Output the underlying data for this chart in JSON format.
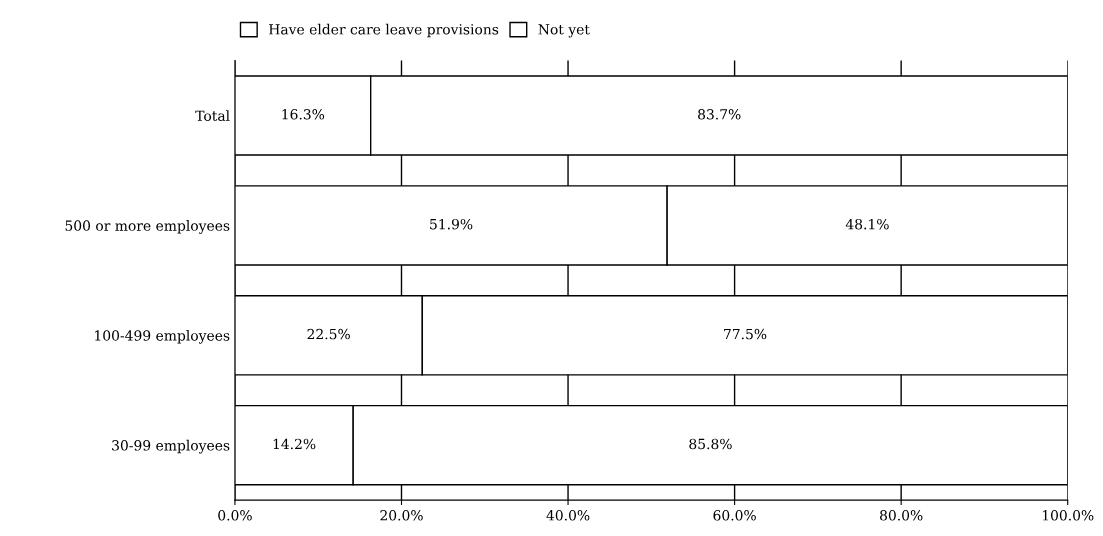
{
  "chart_data": {
    "type": "bar",
    "orientation": "horizontal",
    "stacked": true,
    "categories": [
      "Total",
      "500 or more employees",
      "100-499 employees",
      "30-99 employees"
    ],
    "series": [
      {
        "name": "Have elder care leave provisions",
        "color": "#ffffff",
        "values": [
          16.3,
          51.9,
          22.5,
          14.2
        ],
        "value_labels": [
          "16.3%",
          "51.9%",
          "22.5%",
          "14.2%"
        ]
      },
      {
        "name": "Not yet",
        "color": "#ffffff",
        "values": [
          83.7,
          48.1,
          77.5,
          85.8
        ],
        "value_labels": [
          "83.7%",
          "48.1%",
          "77.5%",
          "85.8%"
        ]
      }
    ],
    "xlim": [
      0,
      100
    ],
    "xticks": [
      {
        "value": 0,
        "label": "0.0%"
      },
      {
        "value": 20,
        "label": "20.0%"
      },
      {
        "value": 40,
        "label": "40.0%"
      },
      {
        "value": 60,
        "label": "60.0%"
      },
      {
        "value": 80,
        "label": "80.0%"
      },
      {
        "value": 100,
        "label": "100.0%"
      }
    ],
    "grid": "x",
    "legend": "top"
  }
}
